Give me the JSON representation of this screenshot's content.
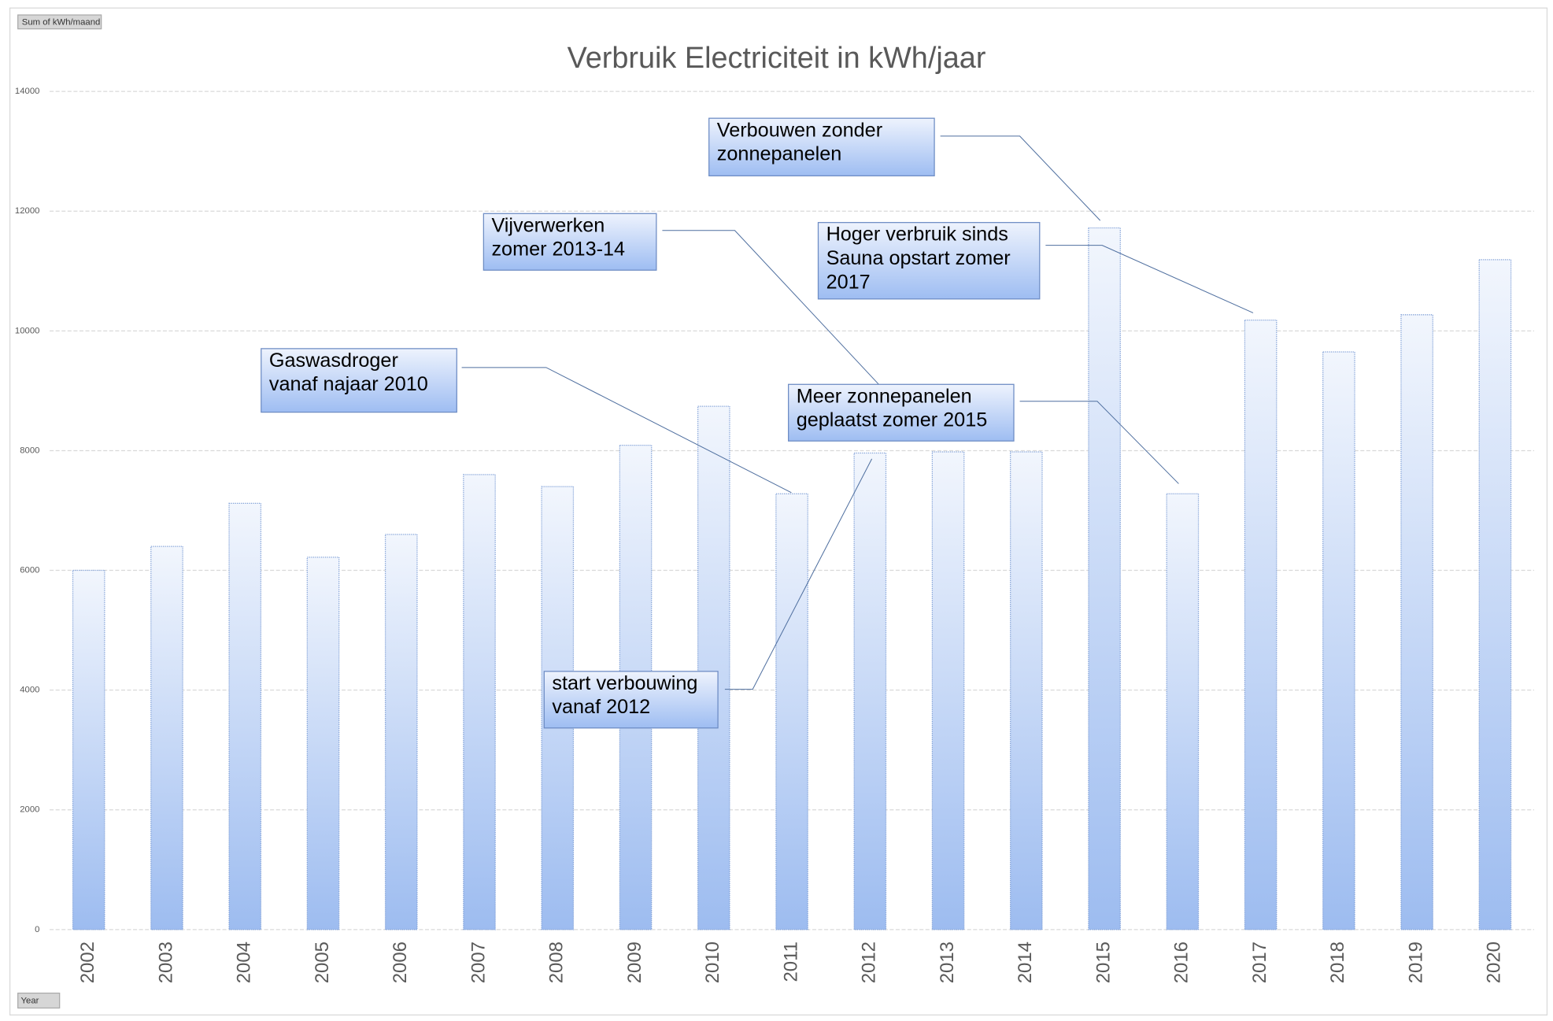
{
  "chart_data": {
    "type": "bar",
    "title": "Verbruik Electriciteit in kWh/jaar",
    "field_button": "Sum of kWh/maand",
    "axis_field_button": "Year",
    "categories": [
      "2002",
      "2003",
      "2004",
      "2005",
      "2006",
      "2007",
      "2008",
      "2009",
      "2010",
      "2011",
      "2012",
      "2013",
      "2014",
      "2015",
      "2016",
      "2017",
      "2018",
      "2019",
      "2020"
    ],
    "values": [
      6000,
      6400,
      7120,
      6220,
      6600,
      7600,
      7400,
      8090,
      8740,
      7280,
      7960,
      7980,
      7980,
      11720,
      7280,
      10180,
      9650,
      10270,
      11190
    ],
    "color": "#9dbcf0",
    "ylim": [
      0,
      14000
    ],
    "yticks": [
      0,
      2000,
      4000,
      6000,
      8000,
      10000,
      12000,
      14000
    ],
    "grid": true,
    "annotations": [
      [
        "Gaswasdroger",
        "vanaf najaar 2010"
      ],
      [
        "Vijverwerken",
        "zomer 2013-14"
      ],
      [
        "Verbouwen zonder",
        "zonnepanelen"
      ],
      [
        "Hoger verbruik sinds",
        "Sauna opstart  zomer",
        "2017"
      ],
      [
        "Meer zonnepanelen",
        "geplaatst zomer 2015"
      ],
      [
        "start verbouwing",
        "vanaf 2012"
      ]
    ]
  }
}
